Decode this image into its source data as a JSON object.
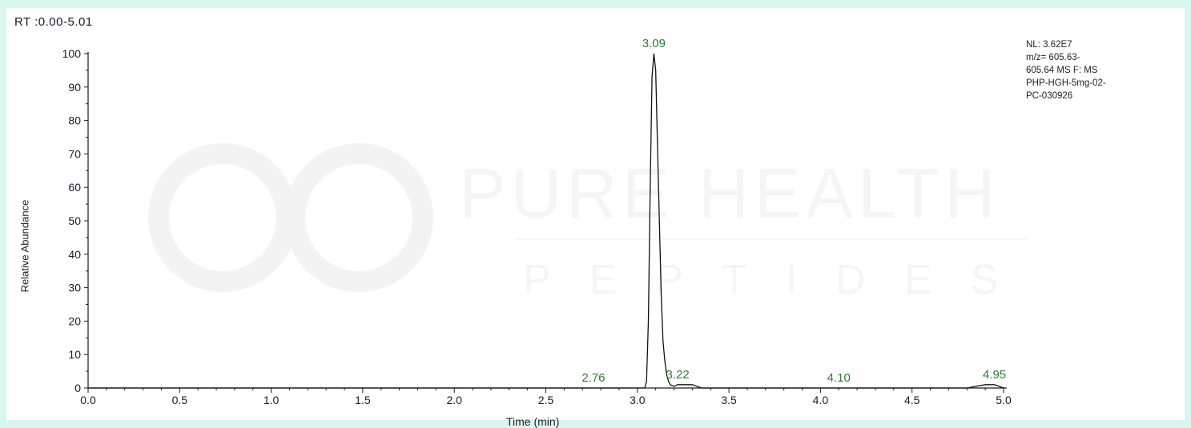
{
  "header": {
    "rt_range": "RT :0.00-5.01"
  },
  "info_box": {
    "text": "NL: 3.62E7\nm/z= 605.63-\n605.64 MS  F: MS\nPHP-HGH-5mg-02-\nPC-030926"
  },
  "watermark": {
    "line1": "PURE HEALTH",
    "line2": "PEPTIDES"
  },
  "colors": {
    "background": "#d9f7ef",
    "trace": "#111111",
    "peak_label": "#2e7d32",
    "axis": "#1a1a2e"
  },
  "chart_data": {
    "type": "line",
    "xlabel": "Time (min)",
    "ylabel": "Relative Abundance",
    "xlim": [
      0.0,
      5.0
    ],
    "ylim": [
      0,
      100
    ],
    "xticks": [
      "0.0",
      "0.5",
      "1.0",
      "1.5",
      "2.0",
      "2.5",
      "3.0",
      "3.5",
      "4.0",
      "4.5",
      "5.0"
    ],
    "yticks": [
      "0",
      "10",
      "20",
      "30",
      "40",
      "50",
      "60",
      "70",
      "80",
      "90",
      "100"
    ],
    "series": [
      {
        "x": [
          0.0,
          3.04,
          3.05,
          3.06,
          3.07,
          3.08,
          3.09,
          3.1,
          3.11,
          3.12,
          3.13,
          3.14,
          3.15,
          3.16,
          3.17,
          3.18,
          3.2,
          3.22,
          3.25,
          3.3,
          3.35,
          4.0,
          4.8,
          4.9,
          4.95,
          5.0
        ],
        "y": [
          0,
          0,
          2,
          20,
          60,
          93,
          100,
          95,
          72,
          50,
          28,
          14,
          8,
          4,
          2,
          1,
          0.5,
          1,
          1,
          1,
          0,
          0,
          0,
          1,
          1,
          0
        ]
      }
    ],
    "annotations": [
      {
        "x": 3.09,
        "label": "3.09"
      },
      {
        "x": 2.76,
        "label": "2.76"
      },
      {
        "x": 3.22,
        "label": "3.22"
      },
      {
        "x": 4.1,
        "label": "4.10"
      },
      {
        "x": 4.95,
        "label": "4.95"
      }
    ]
  }
}
